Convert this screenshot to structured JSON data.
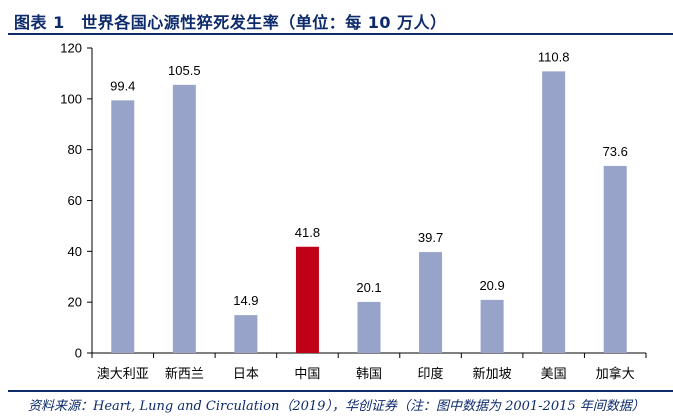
{
  "header": {
    "title": "图表 1　世界各国心源性猝死发生率（单位：每 10 万人）"
  },
  "footer": {
    "source": "资料来源：Heart, Lung and Circulation（2019），华创证券（注：图中数据为 2001-2015 年间数据）"
  },
  "colors": {
    "default_bar": "#97a3c9",
    "highlight_bar": "#c00017",
    "axis": "#000000",
    "title": "#0d2a6b"
  },
  "chart_data": {
    "type": "bar",
    "title": "世界各国心源性猝死发生率（单位：每 10 万人）",
    "xlabel": "",
    "ylabel": "",
    "ylim": [
      0,
      120
    ],
    "yticks": [
      0,
      20,
      40,
      60,
      80,
      100,
      120
    ],
    "grid": false,
    "categories": [
      "澳大利亚",
      "新西兰",
      "日本",
      "中国",
      "韩国",
      "印度",
      "新加坡",
      "美国",
      "加拿大"
    ],
    "values": [
      99.4,
      105.5,
      14.9,
      41.8,
      20.1,
      39.7,
      20.9,
      110.8,
      73.6
    ],
    "value_labels": [
      "99.4",
      "105.5",
      "14.9",
      "41.8",
      "20.1",
      "39.7",
      "20.9",
      "110.8",
      "73.6"
    ],
    "highlight": "中国"
  }
}
